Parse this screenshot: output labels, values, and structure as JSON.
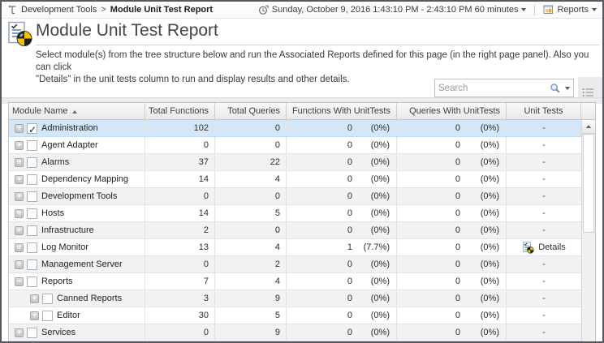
{
  "breadcrumb": {
    "parent": "Development Tools",
    "separator": ">",
    "current": "Module Unit Test Report"
  },
  "topbar": {
    "time_range": "Sunday, October 9, 2016 1:43:10 PM - 2:43:10 PM 60 minutes",
    "reports_label": "Reports"
  },
  "page": {
    "title": "Module Unit Test Report",
    "description_line1": "Select module(s) from the tree structure below and run the Associated Reports defined for this page (in the right page panel). Also you can click",
    "description_line2": "\"Details\" in the unit tests column to run and display results and other details."
  },
  "toolbar": {
    "search_placeholder": "Search"
  },
  "table": {
    "columns": [
      "Module Name",
      "Total Functions",
      "Total Queries",
      "Functions With UnitTests",
      "Queries With UnitTests",
      "Unit Tests"
    ],
    "details_label": "Details",
    "rows": [
      {
        "name": "Administration",
        "level": 0,
        "expand": "plus",
        "checked": true,
        "selected": true,
        "total_functions": "102",
        "total_queries": "0",
        "functions_with_unittests": "0",
        "functions_with_unittests_pct": "(0%)",
        "queries_with_unittests": "0",
        "queries_with_unittests_pct": "(0%)",
        "unit_tests": "-"
      },
      {
        "name": "Agent Adapter",
        "level": 0,
        "expand": "plus",
        "checked": false,
        "selected": false,
        "total_functions": "0",
        "total_queries": "0",
        "functions_with_unittests": "0",
        "functions_with_unittests_pct": "(0%)",
        "queries_with_unittests": "0",
        "queries_with_unittests_pct": "(0%)",
        "unit_tests": "-"
      },
      {
        "name": "Alarms",
        "level": 0,
        "expand": "plus",
        "checked": false,
        "selected": false,
        "total_functions": "37",
        "total_queries": "22",
        "functions_with_unittests": "0",
        "functions_with_unittests_pct": "(0%)",
        "queries_with_unittests": "0",
        "queries_with_unittests_pct": "(0%)",
        "unit_tests": "-"
      },
      {
        "name": "Dependency Mapping",
        "level": 0,
        "expand": "plus",
        "checked": false,
        "selected": false,
        "total_functions": "14",
        "total_queries": "4",
        "functions_with_unittests": "0",
        "functions_with_unittests_pct": "(0%)",
        "queries_with_unittests": "0",
        "queries_with_unittests_pct": "(0%)",
        "unit_tests": "-"
      },
      {
        "name": "Development Tools",
        "level": 0,
        "expand": "plus",
        "checked": false,
        "selected": false,
        "total_functions": "0",
        "total_queries": "0",
        "functions_with_unittests": "0",
        "functions_with_unittests_pct": "(0%)",
        "queries_with_unittests": "0",
        "queries_with_unittests_pct": "(0%)",
        "unit_tests": "-"
      },
      {
        "name": "Hosts",
        "level": 0,
        "expand": "plus",
        "checked": false,
        "selected": false,
        "total_functions": "14",
        "total_queries": "5",
        "functions_with_unittests": "0",
        "functions_with_unittests_pct": "(0%)",
        "queries_with_unittests": "0",
        "queries_with_unittests_pct": "(0%)",
        "unit_tests": "-"
      },
      {
        "name": "Infrastructure",
        "level": 0,
        "expand": "plus",
        "checked": false,
        "selected": false,
        "total_functions": "2",
        "total_queries": "0",
        "functions_with_unittests": "0",
        "functions_with_unittests_pct": "(0%)",
        "queries_with_unittests": "0",
        "queries_with_unittests_pct": "(0%)",
        "unit_tests": "-"
      },
      {
        "name": "Log Monitor",
        "level": 0,
        "expand": "plus",
        "checked": false,
        "selected": false,
        "total_functions": "13",
        "total_queries": "4",
        "functions_with_unittests": "1",
        "functions_with_unittests_pct": "(7.7%)",
        "queries_with_unittests": "0",
        "queries_with_unittests_pct": "(0%)",
        "unit_tests": "Details"
      },
      {
        "name": "Management Server",
        "level": 0,
        "expand": "plus",
        "checked": false,
        "selected": false,
        "total_functions": "0",
        "total_queries": "2",
        "functions_with_unittests": "0",
        "functions_with_unittests_pct": "(0%)",
        "queries_with_unittests": "0",
        "queries_with_unittests_pct": "(0%)",
        "unit_tests": "-"
      },
      {
        "name": "Reports",
        "level": 0,
        "expand": "minus",
        "checked": false,
        "selected": false,
        "total_functions": "7",
        "total_queries": "4",
        "functions_with_unittests": "0",
        "functions_with_unittests_pct": "(0%)",
        "queries_with_unittests": "0",
        "queries_with_unittests_pct": "(0%)",
        "unit_tests": "-"
      },
      {
        "name": "Canned Reports",
        "level": 1,
        "expand": "plus",
        "checked": false,
        "selected": false,
        "total_functions": "3",
        "total_queries": "9",
        "functions_with_unittests": "0",
        "functions_with_unittests_pct": "(0%)",
        "queries_with_unittests": "0",
        "queries_with_unittests_pct": "(0%)",
        "unit_tests": "-"
      },
      {
        "name": "Editor",
        "level": 1,
        "expand": "plus",
        "checked": false,
        "selected": false,
        "total_functions": "30",
        "total_queries": "5",
        "functions_with_unittests": "0",
        "functions_with_unittests_pct": "(0%)",
        "queries_with_unittests": "0",
        "queries_with_unittests_pct": "(0%)",
        "unit_tests": "-"
      },
      {
        "name": "Services",
        "level": 0,
        "expand": "plus",
        "checked": false,
        "selected": false,
        "total_functions": "0",
        "total_queries": "9",
        "functions_with_unittests": "0",
        "functions_with_unittests_pct": "(0%)",
        "queries_with_unittests": "0",
        "queries_with_unittests_pct": "(0%)",
        "unit_tests": "-"
      }
    ]
  }
}
